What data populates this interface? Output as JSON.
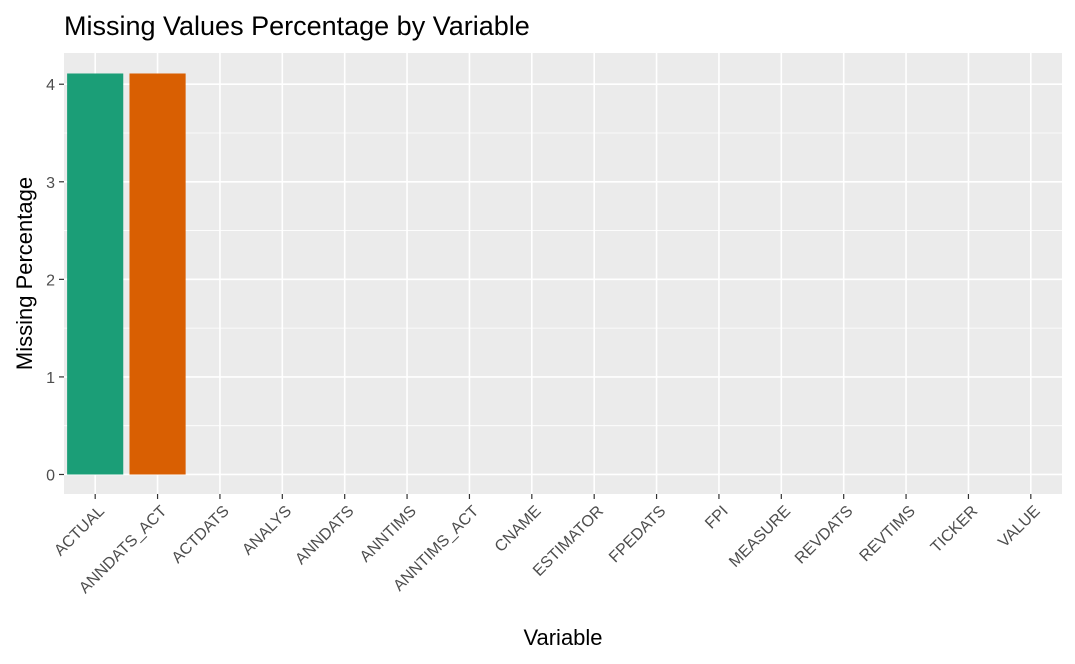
{
  "chart_data": {
    "type": "bar",
    "title": "Missing Values Percentage by Variable",
    "xlabel": "Variable",
    "ylabel": "Missing Percentage",
    "categories": [
      "ACTUAL",
      "ANNDATS_ACT",
      "ACTDATS",
      "ANALYS",
      "ANNDATS",
      "ANNTIMS",
      "ANNTIMS_ACT",
      "CNAME",
      "ESTIMATOR",
      "FPEDATS",
      "FPI",
      "MEASURE",
      "REVDATS",
      "REVTIMS",
      "TICKER",
      "VALUE"
    ],
    "values": [
      4.11,
      4.11,
      0,
      0,
      0,
      0,
      0,
      0,
      0,
      0,
      0,
      0,
      0,
      0,
      0,
      0
    ],
    "bar_colors": [
      "#1B9E77",
      "#D95F02",
      "#7570B3",
      "#E7298A",
      "#66A61E",
      "#E6AB02",
      "#A6761D",
      "#666666",
      "#1B9E77",
      "#D95F02",
      "#7570B3",
      "#E7298A",
      "#66A61E",
      "#E6AB02",
      "#A6761D",
      "#666666"
    ],
    "yticks": [
      "0",
      "1",
      "2",
      "3",
      "4"
    ],
    "ylim": [
      -0.2,
      4.32
    ],
    "grid": true,
    "legend": "none",
    "panel_background": "#EBEBEB",
    "grid_color": "#FFFFFF",
    "x_tick_rotation_deg": 45
  }
}
